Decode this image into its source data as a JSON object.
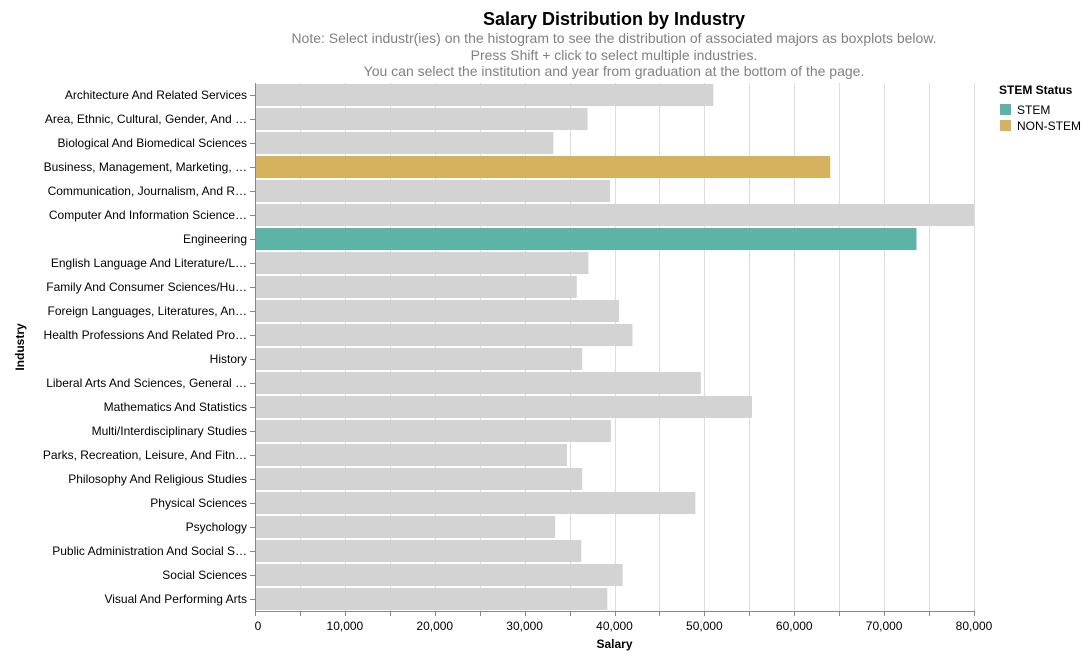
{
  "chart_data": {
    "type": "bar",
    "orientation": "horizontal",
    "title": "Salary Distribution by Industry",
    "subtitle": [
      "Note: Select industr(ies) on the histogram to see the distribution of associated majors as boxplots below.",
      "Press Shift + click to select multiple industries.",
      "You can select the institution and year from graduation at the bottom of the page."
    ],
    "xlabel": "Salary",
    "ylabel": "Industry",
    "xlim": [
      0,
      80000
    ],
    "xticks": [
      0,
      10000,
      20000,
      30000,
      40000,
      50000,
      60000,
      70000,
      80000
    ],
    "xtick_labels": [
      "0",
      "10,000",
      "20,000",
      "30,000",
      "40,000",
      "50,000",
      "60,000",
      "70,000",
      "80,000"
    ],
    "grid": true,
    "legend": {
      "title": "STEM Status",
      "position": "top-right",
      "entries": [
        {
          "label": "STEM",
          "color": "#5eb3a7"
        },
        {
          "label": "NON-STEM",
          "color": "#d6b25f"
        }
      ]
    },
    "default_color": "#d3d3d3",
    "categories": [
      "Architecture And Related Services",
      "Area, Ethnic, Cultural, Gender, And …",
      "Biological And Biomedical Sciences",
      "Business, Management, Marketing, …",
      "Communication, Journalism, And R…",
      "Computer And Information Science…",
      "Engineering",
      "English Language And Literature/L…",
      "Family And Consumer Sciences/Hu…",
      "Foreign Languages, Literatures, An…",
      "Health Professions And Related Pro…",
      "History",
      "Liberal Arts And Sciences, General …",
      "Mathematics And Statistics",
      "Multi/Interdisciplinary Studies",
      "Parks, Recreation, Leisure, And Fitn…",
      "Philosophy And Religious Studies",
      "Physical Sciences",
      "Psychology",
      "Public Administration And Social S…",
      "Social Sciences",
      "Visual And Performing Arts"
    ],
    "values": [
      51000,
      37000,
      33200,
      64000,
      39500,
      80000,
      73600,
      37100,
      35800,
      40500,
      42000,
      36400,
      49600,
      55300,
      39600,
      34700,
      36400,
      49000,
      33400,
      36300,
      40900,
      39200
    ],
    "highlight": [
      null,
      null,
      null,
      "NON-STEM",
      null,
      null,
      "STEM",
      null,
      null,
      null,
      null,
      null,
      null,
      null,
      null,
      null,
      null,
      null,
      null,
      null,
      null,
      null
    ]
  }
}
